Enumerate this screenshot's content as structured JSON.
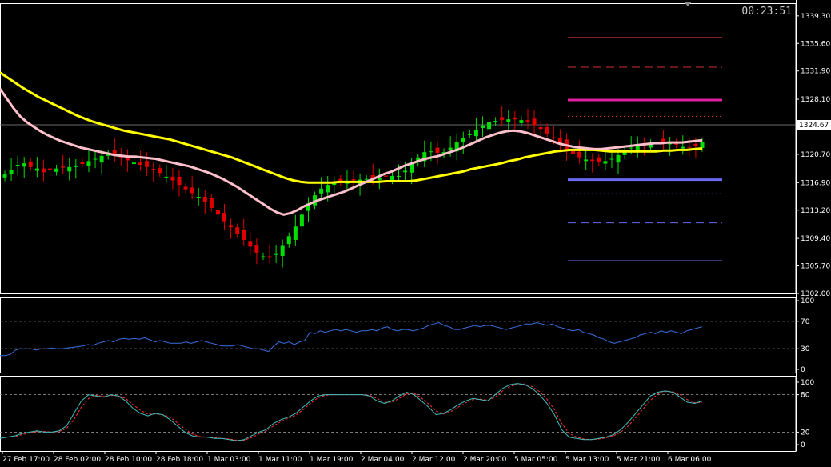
{
  "clock": "00:23:51",
  "colors": {
    "background": "#000000",
    "bull_candle": "#00e000",
    "bear_candle": "#e00000",
    "ma_fast": "#ffc0cb",
    "ma_slow": "#ffff00",
    "rsi_line": "#3a6fe0",
    "stoch_main": "#40c0c0",
    "stoch_signal": "#ff3030",
    "level_red": "#d03030",
    "level_magenta": "#e020a0",
    "level_blue": "#6a6af0"
  },
  "chart_data": [
    {
      "type": "candlestick",
      "panel": "price",
      "title": "",
      "ylim": [
        1302.0,
        1341.0
      ],
      "yticks": [
        "1339.30",
        "1335.60",
        "1331.90",
        "1328.10",
        "1324.67",
        "1320.70",
        "1316.90",
        "1313.20",
        "1309.40",
        "1305.70",
        "1302.00"
      ],
      "current_price": "1324.67",
      "x_labels": [
        "27 Feb 17:00",
        "28 Feb 02:00",
        "28 Feb 10:00",
        "28 Feb 18:00",
        "1 Mar 03:00",
        "1 Mar 11:00",
        "1 Mar 19:00",
        "2 Mar 04:00",
        "2 Mar 12:00",
        "2 Mar 20:00",
        "5 Mar 05:00",
        "5 Mar 13:00",
        "5 Mar 21:00",
        "6 Mar 06:00"
      ],
      "close": [
        1318.0,
        1318.6,
        1319.3,
        1319.5,
        1319.0,
        1318.8,
        1318.3,
        1318.6,
        1318.8,
        1318.9,
        1319.0,
        1319.2,
        1319.4,
        1319.8,
        1320.1,
        1320.5,
        1320.8,
        1320.6,
        1320.3,
        1319.9,
        1319.6,
        1319.3,
        1319.0,
        1318.6,
        1318.2,
        1317.7,
        1317.2,
        1316.6,
        1316.0,
        1315.5,
        1315.0,
        1314.3,
        1313.5,
        1312.6,
        1311.7,
        1310.9,
        1310.0,
        1309.2,
        1308.3,
        1307.5,
        1307.0,
        1306.8,
        1307.3,
        1308.4,
        1309.7,
        1311.0,
        1312.6,
        1314.1,
        1315.2,
        1316.1,
        1316.6,
        1316.9,
        1317.0,
        1317.1,
        1317.2,
        1317.3,
        1317.4,
        1317.5,
        1317.6,
        1317.7,
        1317.8,
        1317.8,
        1318.5,
        1319.4,
        1320.3,
        1321.0,
        1321.1,
        1320.9,
        1321.0,
        1321.6,
        1322.3,
        1322.9,
        1323.4,
        1324.0,
        1324.6,
        1325.0,
        1325.2,
        1325.3,
        1325.4,
        1325.4,
        1325.3,
        1325.0,
        1324.6,
        1324.1,
        1323.5,
        1322.9,
        1322.2,
        1321.4,
        1320.8,
        1320.3,
        1320.0,
        1319.8,
        1319.7,
        1319.8,
        1320.1,
        1320.6,
        1321.1,
        1321.6,
        1321.9,
        1322.1,
        1322.2,
        1322.3,
        1322.3,
        1322.2,
        1322.0,
        1321.7,
        1321.6,
        1321.8,
        1322.4
      ],
      "ma_fast": [
        1329.5,
        1328.2,
        1326.9,
        1325.8,
        1325.0,
        1324.4,
        1323.8,
        1323.3,
        1322.9,
        1322.5,
        1322.2,
        1321.9,
        1321.6,
        1321.4,
        1321.2,
        1321.0,
        1320.8,
        1320.6,
        1320.5,
        1320.4,
        1320.4,
        1320.3,
        1320.2,
        1320.1,
        1319.9,
        1319.7,
        1319.5,
        1319.3,
        1319.1,
        1318.8,
        1318.5,
        1318.2,
        1317.8,
        1317.4,
        1316.9,
        1316.4,
        1315.8,
        1315.2,
        1314.6,
        1314.0,
        1313.4,
        1312.9,
        1312.6,
        1312.8,
        1313.2,
        1313.7,
        1314.1,
        1314.5,
        1314.8,
        1315.1,
        1315.4,
        1315.7,
        1316.1,
        1316.5,
        1316.9,
        1317.3,
        1317.7,
        1318.1,
        1318.4,
        1318.8,
        1319.2,
        1319.5,
        1319.8,
        1320.1,
        1320.3,
        1320.5,
        1320.8,
        1321.1,
        1321.4,
        1321.8,
        1322.2,
        1322.6,
        1323.0,
        1323.3,
        1323.6,
        1323.8,
        1323.9,
        1323.8,
        1323.6,
        1323.3,
        1323.0,
        1322.7,
        1322.4,
        1322.1,
        1321.9,
        1321.7,
        1321.6,
        1321.5,
        1321.4,
        1321.4,
        1321.5,
        1321.6,
        1321.7,
        1321.8,
        1321.9,
        1322.0,
        1322.1,
        1322.2,
        1322.2,
        1322.3,
        1322.3,
        1322.3,
        1322.4,
        1322.5,
        1322.6
      ],
      "ma_slow": [
        1331.7,
        1331.0,
        1330.3,
        1329.6,
        1329.0,
        1328.4,
        1327.9,
        1327.4,
        1326.9,
        1326.4,
        1325.9,
        1325.5,
        1325.1,
        1324.8,
        1324.5,
        1324.2,
        1323.9,
        1323.7,
        1323.5,
        1323.3,
        1323.1,
        1322.9,
        1322.7,
        1322.4,
        1322.1,
        1321.8,
        1321.5,
        1321.2,
        1320.9,
        1320.6,
        1320.3,
        1319.9,
        1319.5,
        1319.1,
        1318.7,
        1318.3,
        1317.9,
        1317.5,
        1317.2,
        1317.0,
        1316.9,
        1316.9,
        1316.9,
        1316.9,
        1317.0,
        1317.0,
        1317.0,
        1317.0,
        1317.0,
        1317.0,
        1317.1,
        1317.1,
        1317.1,
        1317.1,
        1317.2,
        1317.4,
        1317.6,
        1317.8,
        1318.0,
        1318.2,
        1318.4,
        1318.7,
        1318.9,
        1319.1,
        1319.3,
        1319.5,
        1319.8,
        1320.0,
        1320.3,
        1320.5,
        1320.7,
        1320.9,
        1321.1,
        1321.2,
        1321.3,
        1321.3,
        1321.3,
        1321.3,
        1321.2,
        1321.1,
        1321.1,
        1321.1,
        1321.1,
        1321.1,
        1321.1,
        1321.1,
        1321.2,
        1321.2,
        1321.3,
        1321.3,
        1321.4,
        1321.5
      ],
      "levels": [
        {
          "price": 1336.4,
          "style": "solid",
          "color": "level_red"
        },
        {
          "price": 1332.4,
          "style": "dashed",
          "color": "level_red"
        },
        {
          "price": 1328.0,
          "style": "solid-thick",
          "color": "level_magenta"
        },
        {
          "price": 1325.8,
          "style": "dotted",
          "color": "level_red"
        },
        {
          "price": 1317.3,
          "style": "solid-thick",
          "color": "level_blue"
        },
        {
          "price": 1315.4,
          "style": "dotted",
          "color": "level_blue"
        },
        {
          "price": 1311.5,
          "style": "dashed",
          "color": "level_blue"
        },
        {
          "price": 1306.4,
          "style": "solid",
          "color": "level_blue"
        }
      ]
    },
    {
      "type": "line",
      "panel": "rsi",
      "ylim": [
        0,
        100
      ],
      "yticks": [
        "100",
        "70",
        "30",
        "0"
      ],
      "levels": [
        70,
        30
      ],
      "values": [
        20,
        20,
        22,
        28,
        30,
        30,
        30,
        28,
        30,
        30,
        31,
        30,
        30,
        31,
        32,
        33,
        34,
        36,
        35,
        38,
        40,
        42,
        40,
        44,
        45,
        44,
        45,
        44,
        46,
        43,
        40,
        42,
        40,
        38,
        38,
        38,
        40,
        38,
        40,
        42,
        40,
        38,
        36,
        34,
        34,
        34,
        36,
        34,
        32,
        30,
        30,
        28,
        26,
        34,
        40,
        38,
        40,
        36,
        40,
        42,
        54,
        52,
        56,
        54,
        56,
        58,
        56,
        58,
        56,
        54,
        56,
        56,
        58,
        56,
        60,
        62,
        58,
        56,
        58,
        58,
        56,
        58,
        60,
        64,
        66,
        68,
        64,
        62,
        58,
        58,
        60,
        62,
        64,
        62,
        64,
        64,
        62,
        60,
        58,
        60,
        62,
        64,
        66,
        66,
        68,
        66,
        64,
        66,
        62,
        60,
        58,
        56,
        58,
        54,
        52,
        50,
        46,
        44,
        40,
        38,
        40,
        42,
        44,
        46,
        50,
        52,
        54,
        52,
        56,
        54,
        56,
        54,
        52,
        56,
        58,
        60,
        62
      ]
    },
    {
      "type": "line",
      "panel": "stochastic",
      "ylim": [
        0,
        100
      ],
      "yticks": [
        "100",
        "80",
        "20",
        "0"
      ],
      "levels": [
        80,
        20
      ],
      "main": [
        10,
        12,
        14,
        18,
        20,
        22,
        20,
        20,
        22,
        30,
        50,
        70,
        80,
        78,
        76,
        80,
        78,
        70,
        58,
        50,
        46,
        50,
        48,
        40,
        30,
        20,
        14,
        12,
        12,
        10,
        10,
        8,
        6,
        8,
        14,
        20,
        24,
        34,
        40,
        44,
        50,
        60,
        70,
        78,
        80,
        80,
        80,
        80,
        80,
        80,
        78,
        70,
        66,
        70,
        78,
        84,
        80,
        70,
        60,
        48,
        50,
        56,
        64,
        70,
        74,
        72,
        70,
        80,
        90,
        96,
        98,
        96,
        90,
        80,
        66,
        48,
        24,
        12,
        10,
        8,
        8,
        10,
        12,
        16,
        24,
        36,
        50,
        64,
        78,
        84,
        86,
        84,
        76,
        68,
        66,
        70
      ],
      "signal": [
        12,
        12,
        13,
        16,
        19,
        21,
        21,
        20,
        21,
        26,
        40,
        60,
        74,
        79,
        77,
        79,
        78,
        74,
        64,
        55,
        49,
        49,
        48,
        44,
        35,
        25,
        17,
        13,
        12,
        11,
        10,
        9,
        7,
        7,
        11,
        17,
        22,
        30,
        37,
        42,
        47,
        56,
        66,
        75,
        79,
        80,
        80,
        80,
        80,
        80,
        79,
        74,
        68,
        68,
        74,
        81,
        82,
        75,
        65,
        54,
        49,
        53,
        60,
        67,
        72,
        73,
        71,
        76,
        86,
        93,
        97,
        97,
        93,
        85,
        73,
        56,
        34,
        18,
        12,
        9,
        8,
        9,
        11,
        14,
        20,
        30,
        43,
        57,
        71,
        81,
        85,
        85,
        80,
        72,
        67,
        68
      ]
    }
  ]
}
